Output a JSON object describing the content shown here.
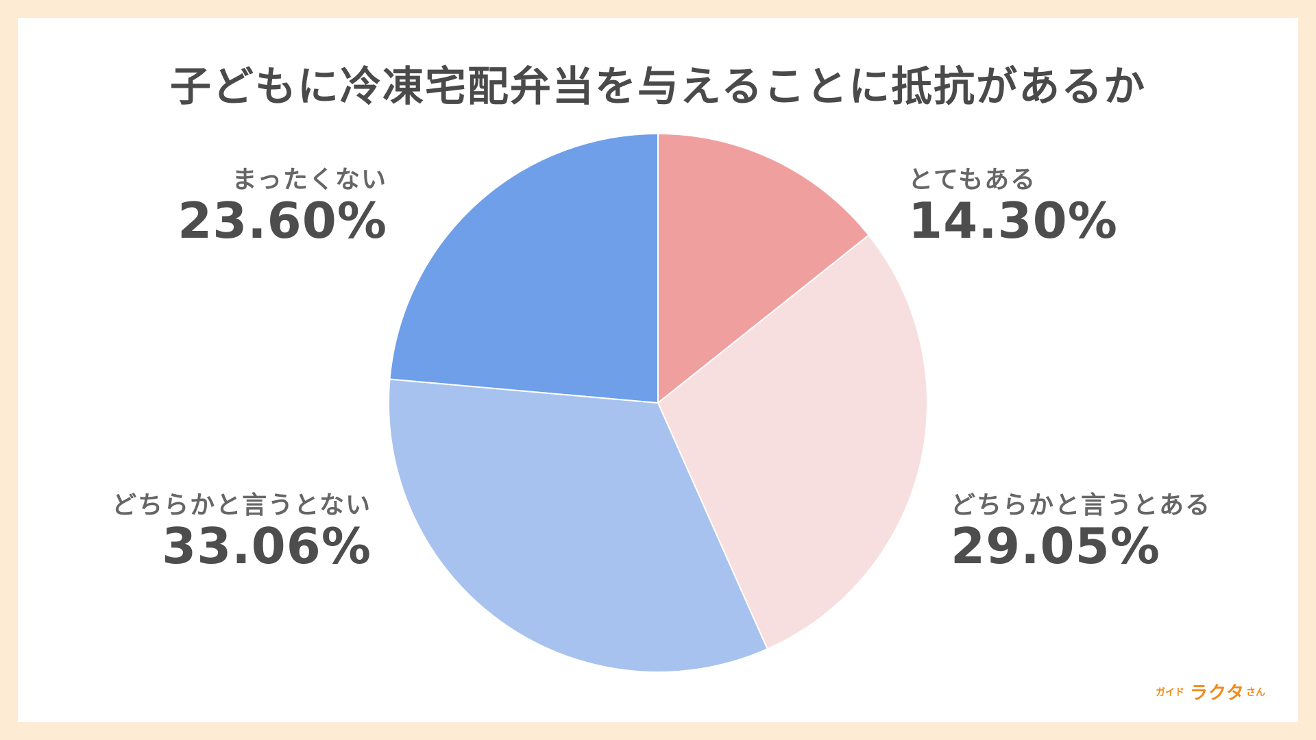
{
  "chart_data": {
    "type": "pie",
    "title": "子どもに冷凍宅配弁当を与えることに抵抗があるか",
    "slices": [
      {
        "label": "とてもある",
        "value": 14.3,
        "display": "14.30%",
        "color": "#f09f9f"
      },
      {
        "label": "どちらかと言うとある",
        "value": 29.05,
        "display": "29.05%",
        "color": "#f8dfdf"
      },
      {
        "label": "どちらかと言うとない",
        "value": 33.06,
        "display": "33.06%",
        "color": "#a7c2ee"
      },
      {
        "label": "まったくない",
        "value": 23.6,
        "display": "23.60%",
        "color": "#6e9fe8"
      }
    ],
    "start_angle_deg": 0,
    "direction": "clockwise"
  },
  "logo": {
    "prefix": "ガイド",
    "brand": "ラクタ",
    "suffix": "さん",
    "color": "#f08a1a"
  }
}
